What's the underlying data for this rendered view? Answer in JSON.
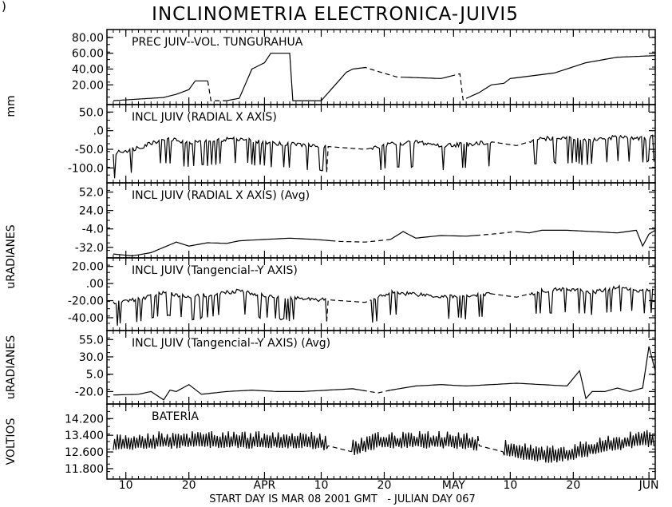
{
  "window": {
    "corner_glyph": ")"
  },
  "chart_data": {
    "type": "line",
    "title": "INCLINOMETRIA ELECTRONICA-JUIVI5",
    "xlabel": "START DAY IS MAR 08 2001 GMT   - JULIAN DAY 067",
    "x_ticks": [
      {
        "day": 2,
        "label": "10"
      },
      {
        "day": 12,
        "label": "20"
      },
      {
        "day": 24,
        "label": "APR"
      },
      {
        "day": 33,
        "label": "10"
      },
      {
        "day": 43,
        "label": "20"
      },
      {
        "day": 54,
        "label": "MAY"
      },
      {
        "day": 63,
        "label": "10"
      },
      {
        "day": 73,
        "label": "20"
      },
      {
        "day": 85,
        "label": "JUN"
      }
    ],
    "x_range": [
      -1,
      86
    ],
    "y_axis_groups": [
      {
        "label": "mm",
        "panels": [
          0,
          1
        ]
      },
      {
        "label": "uRADIANES",
        "panels": [
          2,
          3
        ]
      },
      {
        "label": "uRADIANES",
        "panels": [
          4
        ]
      },
      {
        "label": "VOLTIOS",
        "panels": [
          5
        ]
      }
    ],
    "panels": [
      {
        "name": "PREC JUIV--VOL. TUNGURAHUA",
        "ylim": [
          -5,
          90
        ],
        "yticks": [
          "80.00",
          "60.00",
          "40.00",
          "20.00"
        ],
        "ytick_values": [
          80,
          60,
          40,
          20
        ],
        "series": {
          "x": [
            0,
            4,
            6,
            8,
            10,
            12,
            13,
            15,
            15.5,
            18,
            20,
            22,
            24,
            25,
            26,
            28,
            28.2,
            33,
            37,
            38,
            40,
            42,
            45,
            52,
            55,
            55.2,
            58,
            60,
            62,
            63,
            70,
            75,
            80,
            86
          ],
          "y": [
            0,
            2,
            3,
            4,
            8,
            14,
            25,
            25,
            0,
            0,
            3,
            40,
            48,
            60,
            60,
            60,
            0,
            0,
            36,
            40,
            42,
            37,
            30,
            28,
            34,
            0,
            10,
            20,
            22,
            28,
            35,
            48,
            55,
            57
          ]
        },
        "dashed_segments": [
          [
            15.5,
            18
          ],
          [
            40,
            46
          ],
          [
            54,
            56
          ]
        ]
      },
      {
        "name": "INCL JUIV (RADIAL X AXIS)",
        "ylim": [
          -140,
          70
        ],
        "yticks": [
          "50.0",
          ".0",
          "-50.0",
          "-100.0"
        ],
        "ytick_values": [
          50,
          0,
          -50,
          -100
        ],
        "series": {
          "x": [
            0,
            4,
            8,
            12,
            16,
            20,
            24,
            28,
            32,
            36,
            40,
            44,
            48,
            52,
            56,
            60,
            64,
            68,
            72,
            76,
            80,
            84,
            86
          ],
          "y": [
            -60,
            -45,
            -20,
            -30,
            -25,
            -20,
            -30,
            -35,
            -40,
            -45,
            -50,
            -35,
            -30,
            -40,
            -35,
            -30,
            -40,
            -20,
            -20,
            -25,
            -15,
            -20,
            -15
          ]
        },
        "dashed_segments": [
          [
            34,
            41
          ],
          [
            60,
            66
          ]
        ]
      },
      {
        "name": "INCL JUIV (RADIAL  X AXIS) (Avg)",
        "ylim": [
          -48,
          66
        ],
        "yticks": [
          "52.0",
          "24.0",
          "-4.0",
          "-32.0"
        ],
        "ytick_values": [
          52,
          24,
          -4,
          -32
        ],
        "series": {
          "x": [
            0,
            3,
            6,
            8,
            10,
            12,
            15,
            18,
            20,
            24,
            28,
            32,
            36,
            40,
            44,
            46,
            48,
            52,
            56,
            60,
            64,
            66,
            68,
            72,
            76,
            80,
            83,
            84,
            85,
            86
          ],
          "y": [
            -42,
            -45,
            -40,
            -32,
            -24,
            -30,
            -25,
            -26,
            -22,
            -20,
            -18,
            -20,
            -23,
            -24,
            -20,
            -8,
            -18,
            -14,
            -15,
            -12,
            -8,
            -10,
            -6,
            -6,
            -8,
            -10,
            -6,
            -30,
            -12,
            -6
          ]
        },
        "dashed_segments": [
          [
            35,
            44
          ],
          [
            58,
            64
          ]
        ]
      },
      {
        "name": "INCL JUIV (Tangencial--Y AXIS)",
        "ylim": [
          -55,
          30
        ],
        "yticks": [
          "20.00",
          ".00",
          "-20.00",
          "-40.00"
        ],
        "ytick_values": [
          20,
          0,
          -20,
          -40
        ],
        "series": {
          "x": [
            0,
            4,
            8,
            12,
            16,
            20,
            24,
            28,
            32,
            36,
            40,
            44,
            48,
            52,
            56,
            60,
            64,
            68,
            72,
            76,
            80,
            84,
            86
          ],
          "y": [
            -22,
            -18,
            -10,
            -15,
            -12,
            -8,
            -14,
            -16,
            -18,
            -20,
            -22,
            -10,
            -12,
            -15,
            -14,
            -12,
            -16,
            -8,
            -6,
            -10,
            -4,
            -8,
            -6
          ]
        },
        "dashed_segments": [
          [
            34,
            41
          ],
          [
            60,
            66
          ]
        ]
      },
      {
        "name": "INCL JUIV (Tangencial--Y AXIS) (Avg)",
        "ylim": [
          -38,
          68
        ],
        "yticks": [
          "55.0",
          "30.0",
          "5.0",
          "-20.0"
        ],
        "ytick_values": [
          55,
          30,
          5,
          -20
        ],
        "series": {
          "x": [
            0,
            4,
            6,
            8,
            9,
            10,
            12,
            14,
            18,
            22,
            26,
            30,
            34,
            38,
            42,
            44,
            48,
            52,
            56,
            60,
            64,
            68,
            72,
            74,
            75,
            76,
            78,
            80,
            82,
            84,
            85,
            86
          ],
          "y": [
            -25,
            -24,
            -20,
            -32,
            -18,
            -20,
            -10,
            -24,
            -20,
            -18,
            -20,
            -20,
            -18,
            -16,
            -22,
            -18,
            -12,
            -10,
            -12,
            -10,
            -8,
            -10,
            -12,
            10,
            -30,
            -20,
            -20,
            -15,
            -20,
            -15,
            45,
            10
          ]
        },
        "dashed_segments": [
          [
            40,
            44
          ]
        ]
      },
      {
        "name": "BATERIA",
        "ylim": [
          11.3,
          14.9
        ],
        "yticks": [
          "14.200",
          "13.400",
          "12.600",
          "11.800"
        ],
        "ytick_values": [
          14.2,
          13.4,
          12.6,
          11.8
        ],
        "series": {
          "x": [
            0,
            8,
            16,
            24,
            30,
            34,
            38,
            42,
            46,
            50,
            54,
            58,
            62,
            66,
            70,
            74,
            78,
            82,
            86
          ],
          "y": [
            12.9,
            13.0,
            13.0,
            13.0,
            13.0,
            12.9,
            12.6,
            13.0,
            13.0,
            13.0,
            13.0,
            12.9,
            12.6,
            12.4,
            12.3,
            12.5,
            12.8,
            13.0,
            13.1
          ]
        },
        "dashed_segments": [
          [
            34,
            38
          ],
          [
            58,
            62
          ]
        ]
      }
    ],
    "grid": false,
    "legend": "none"
  }
}
